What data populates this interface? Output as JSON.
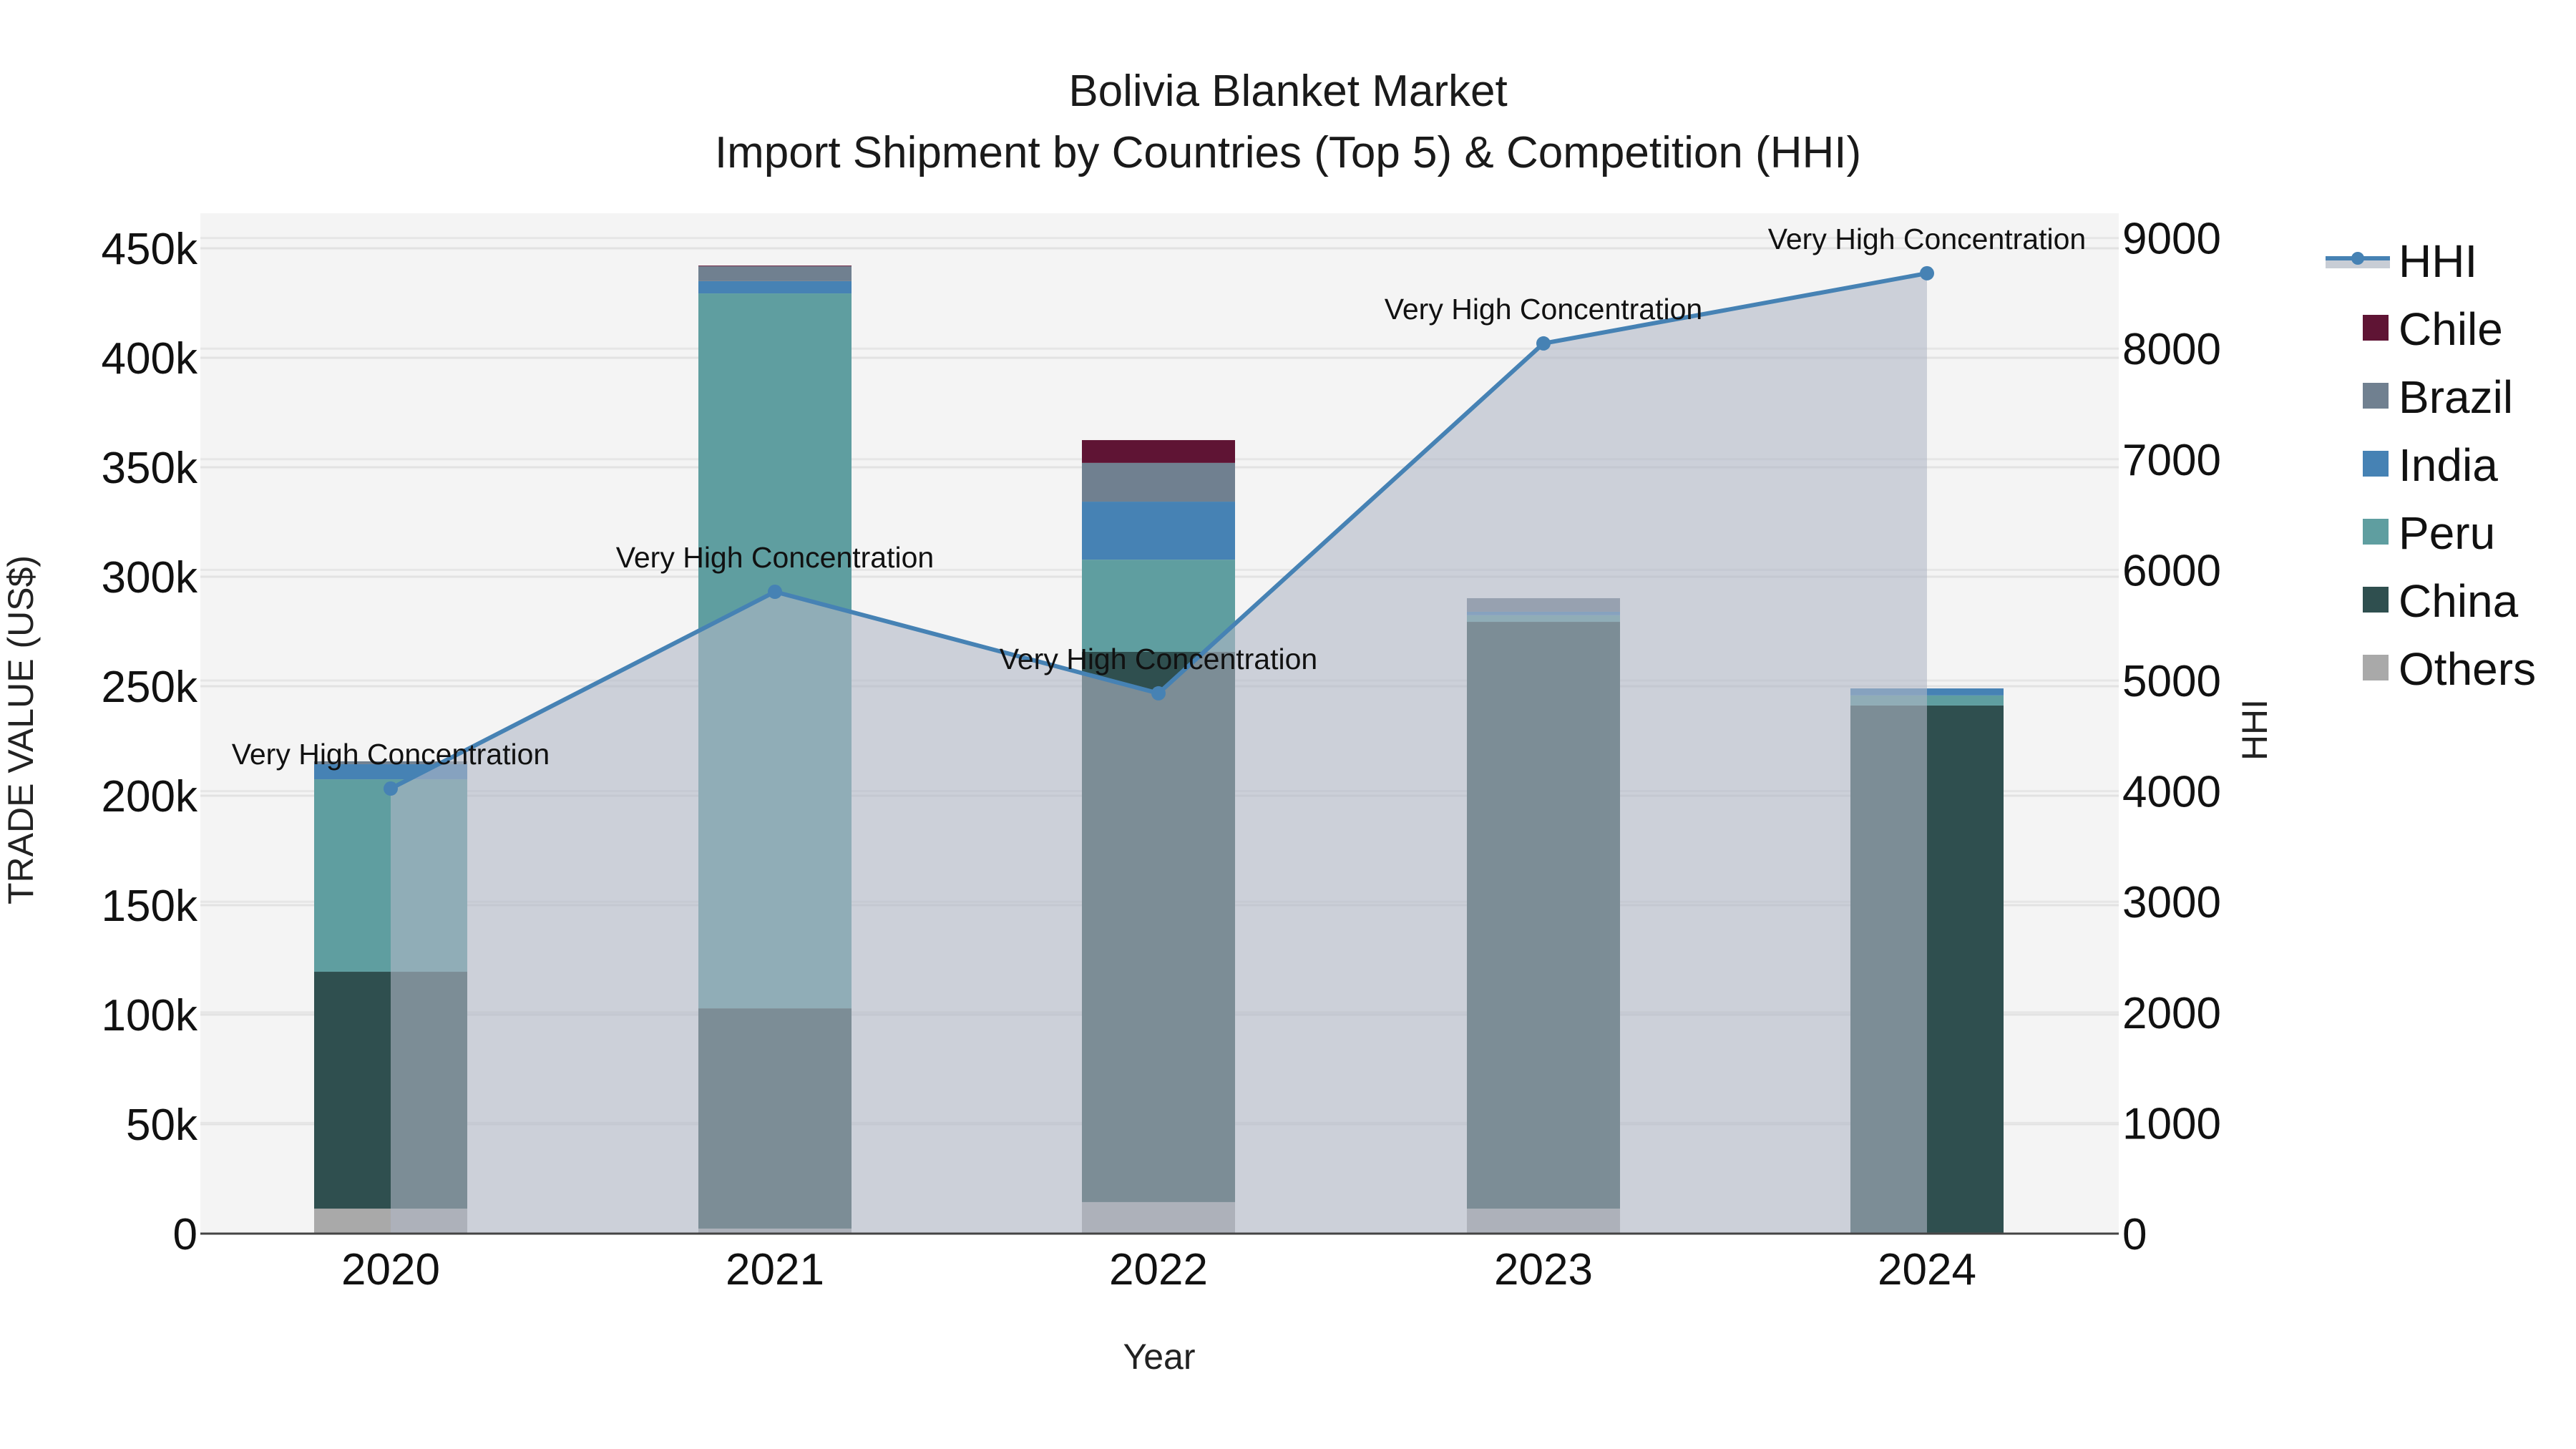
{
  "header": {
    "title": "Bolivia Blanket Market",
    "subtitle": "Import Shipment by Countries (Top 5) & Competition (HHI)"
  },
  "axes": {
    "x_label": "Year",
    "y_left_label": "TRADE VALUE (US$)",
    "y_right_label": "HHI",
    "x_ticks": [
      "2020",
      "2021",
      "2022",
      "2023",
      "2024"
    ],
    "y_left_ticks": [
      "0",
      "50k",
      "100k",
      "150k",
      "200k",
      "250k",
      "300k",
      "350k",
      "400k",
      "450k"
    ],
    "y_right_ticks": [
      "0",
      "1000",
      "2000",
      "3000",
      "4000",
      "5000",
      "6000",
      "7000",
      "8000",
      "9000"
    ]
  },
  "legend": {
    "items": [
      {
        "label": "HHI",
        "color": "#4682b4",
        "type": "line-marker-fill"
      },
      {
        "label": "Chile",
        "color": "#5f1434"
      },
      {
        "label": "Brazil",
        "color": "#708090"
      },
      {
        "label": "India",
        "color": "#4682b4"
      },
      {
        "label": "Peru",
        "color": "#5f9ea0"
      },
      {
        "label": "China",
        "color": "#2f4f4f"
      },
      {
        "label": "Others",
        "color": "#a9a9a9"
      }
    ]
  },
  "annotations": [
    {
      "year": "2020",
      "text": "Very High Concentration"
    },
    {
      "year": "2021",
      "text": "Very High Concentration"
    },
    {
      "year": "2022",
      "text": "Very High Concentration"
    },
    {
      "year": "2023",
      "text": "Very High Concentration"
    },
    {
      "year": "2024",
      "text": "Very High Concentration"
    }
  ],
  "chart_data": {
    "type": "bar",
    "stacked": true,
    "title": "Bolivia Blanket Market",
    "subtitle": "Import Shipment by Countries (Top 5) & Competition (HHI)",
    "xlabel": "Year",
    "ylabel": "TRADE VALUE (US$)",
    "y2label": "HHI",
    "categories": [
      "2020",
      "2021",
      "2022",
      "2023",
      "2024"
    ],
    "ylim": [
      0,
      466000
    ],
    "y2lim": [
      0,
      9220
    ],
    "grid": true,
    "legend_position": "right",
    "series": [
      {
        "name": "Others",
        "color": "#a9a9a9",
        "values": [
          11400,
          2300,
          14400,
          11400,
          500
        ]
      },
      {
        "name": "China",
        "color": "#2f4f4f",
        "values": [
          108200,
          100600,
          251300,
          268000,
          240700
        ]
      },
      {
        "name": "Peru",
        "color": "#5f9ea0",
        "values": [
          87900,
          326500,
          42100,
          3000,
          4600
        ]
      },
      {
        "name": "India",
        "color": "#4682b4",
        "values": [
          6900,
          5600,
          26500,
          1600,
          3200
        ]
      },
      {
        "name": "Brazil",
        "color": "#708090",
        "values": [
          1300,
          6800,
          17700,
          6200,
          0
        ]
      },
      {
        "name": "Chile",
        "color": "#5f1434",
        "values": [
          0,
          300,
          10400,
          0,
          0
        ]
      }
    ],
    "line_series": {
      "name": "HHI",
      "axis": "right",
      "color": "#4682b4",
      "fill": "tozeroy",
      "values": [
        4023,
        5802,
        4884,
        8047,
        8681
      ],
      "labels": [
        "Very High Concentration",
        "Very High Concentration",
        "Very High Concentration",
        "Very High Concentration",
        "Very High Concentration"
      ]
    }
  }
}
